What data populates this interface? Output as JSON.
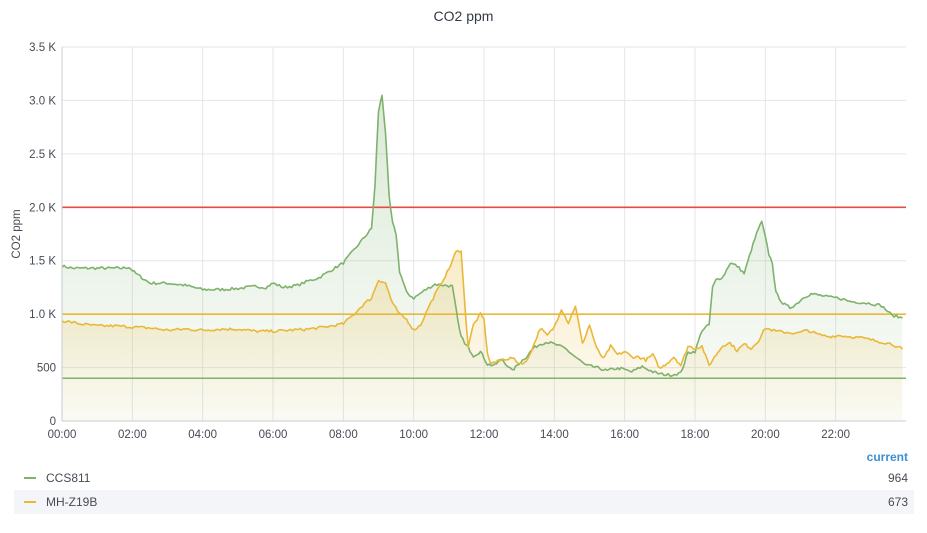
{
  "panel": {
    "title": "CO2 ppm",
    "legend_header": "current"
  },
  "legend": [
    {
      "name": "CCS811",
      "value": "964",
      "color": "#7eb26d"
    },
    {
      "name": "MH-Z19B",
      "value": "673",
      "color": "#eab839"
    }
  ],
  "chart_data": {
    "type": "area",
    "title": "CO2 ppm",
    "ylabel": "CO2 ppm",
    "xlabel": "",
    "x_unit": "hours",
    "xlim": [
      0,
      24
    ],
    "ylim": [
      0,
      3500
    ],
    "x_ticks": [
      0,
      2,
      4,
      6,
      8,
      10,
      12,
      14,
      16,
      18,
      20,
      22
    ],
    "x_tick_labels": [
      "00:00",
      "02:00",
      "04:00",
      "06:00",
      "08:00",
      "10:00",
      "12:00",
      "14:00",
      "16:00",
      "18:00",
      "20:00",
      "22:00"
    ],
    "y_ticks": [
      0,
      500,
      1000,
      1500,
      2000,
      2500,
      3000,
      3500
    ],
    "y_tick_labels": [
      "0",
      "500",
      "1.0 K",
      "1.5 K",
      "2.0 K",
      "2.5 K",
      "3.0 K",
      "3.5 K"
    ],
    "grid": true,
    "thresholds": [
      {
        "value": 2000,
        "color": "#e24d42"
      },
      {
        "value": 1000,
        "color": "#eab839"
      },
      {
        "value": 400,
        "color": "#7eb26d"
      }
    ],
    "series": [
      {
        "name": "CCS811",
        "color": "#7eb26d",
        "x": [
          0,
          0.3,
          1.0,
          1.7,
          1.9,
          2.1,
          2.5,
          3.0,
          3.5,
          4.0,
          4.5,
          5.0,
          5.5,
          5.8,
          6.0,
          6.3,
          6.7,
          7.0,
          7.3,
          7.6,
          8.0,
          8.3,
          8.6,
          8.8,
          8.9,
          9.0,
          9.1,
          9.2,
          9.3,
          9.4,
          9.5,
          9.6,
          9.8,
          10.0,
          10.3,
          10.6,
          10.9,
          11.1,
          11.3,
          11.45,
          11.55,
          11.7,
          11.9,
          12.1,
          12.3,
          12.5,
          12.8,
          13.0,
          13.2,
          13.4,
          13.6,
          13.8,
          14.0,
          14.3,
          14.6,
          14.9,
          15.1,
          15.3,
          15.5,
          15.7,
          15.9,
          16.2,
          16.5,
          16.8,
          17.0,
          17.3,
          17.6,
          17.8,
          18.0,
          18.2,
          18.4,
          18.5,
          18.6,
          18.8,
          19.0,
          19.2,
          19.4,
          19.6,
          19.8,
          19.9,
          20.0,
          20.1,
          20.2,
          20.3,
          20.5,
          20.7,
          20.9,
          21.1,
          21.3,
          21.5,
          21.8,
          22.1,
          22.4,
          22.7,
          23.0,
          23.3,
          23.6,
          23.9
        ],
        "y": [
          1450,
          1430,
          1430,
          1430,
          1440,
          1380,
          1290,
          1290,
          1270,
          1230,
          1230,
          1240,
          1260,
          1250,
          1290,
          1250,
          1270,
          1310,
          1340,
          1400,
          1480,
          1600,
          1720,
          1800,
          2200,
          2900,
          3050,
          2700,
          2100,
          1850,
          1750,
          1400,
          1200,
          1150,
          1220,
          1280,
          1270,
          1260,
          850,
          720,
          690,
          610,
          650,
          530,
          520,
          580,
          470,
          540,
          600,
          680,
          720,
          740,
          720,
          680,
          600,
          520,
          510,
          490,
          470,
          490,
          490,
          460,
          510,
          460,
          440,
          430,
          450,
          640,
          650,
          850,
          900,
          1250,
          1320,
          1350,
          1480,
          1450,
          1380,
          1600,
          1800,
          1860,
          1720,
          1560,
          1480,
          1200,
          1100,
          1060,
          1100,
          1160,
          1190,
          1180,
          1160,
          1150,
          1120,
          1110,
          1100,
          1080,
          990,
          964
        ]
      },
      {
        "name": "MH-Z19B",
        "color": "#eab839",
        "x": [
          0,
          0.5,
          1.0,
          1.5,
          2.0,
          2.5,
          3.0,
          3.5,
          4.0,
          4.5,
          5.0,
          5.5,
          6.0,
          6.5,
          7.0,
          7.5,
          8.0,
          8.3,
          8.6,
          8.8,
          9.0,
          9.2,
          9.4,
          9.5,
          9.6,
          9.8,
          10.0,
          10.2,
          10.4,
          10.6,
          10.8,
          11.0,
          11.2,
          11.35,
          11.45,
          11.55,
          11.7,
          11.9,
          12.0,
          12.1,
          12.2,
          12.4,
          12.6,
          12.8,
          13.0,
          13.2,
          13.4,
          13.6,
          13.8,
          14.0,
          14.2,
          14.4,
          14.6,
          14.8,
          15.0,
          15.2,
          15.4,
          15.6,
          15.8,
          16.0,
          16.2,
          16.4,
          16.6,
          16.8,
          17.0,
          17.2,
          17.4,
          17.6,
          17.8,
          18.0,
          18.2,
          18.4,
          18.6,
          18.8,
          19.0,
          19.2,
          19.4,
          19.6,
          19.8,
          20.0,
          20.3,
          20.6,
          20.9,
          21.2,
          21.5,
          21.8,
          22.1,
          22.4,
          22.7,
          23.0,
          23.3,
          23.6,
          23.9
        ],
        "y": [
          940,
          910,
          890,
          890,
          880,
          870,
          850,
          860,
          850,
          860,
          860,
          840,
          840,
          850,
          860,
          880,
          910,
          1000,
          1100,
          1150,
          1320,
          1290,
          1100,
          1050,
          1000,
          950,
          850,
          900,
          1050,
          1180,
          1300,
          1420,
          1580,
          1600,
          1100,
          700,
          900,
          1000,
          950,
          620,
          540,
          560,
          580,
          590,
          540,
          550,
          700,
          870,
          800,
          880,
          1050,
          920,
          1080,
          720,
          900,
          680,
          580,
          700,
          620,
          650,
          600,
          600,
          570,
          620,
          490,
          540,
          600,
          520,
          700,
          680,
          700,
          520,
          620,
          710,
          730,
          660,
          720,
          680,
          750,
          870,
          840,
          830,
          820,
          850,
          810,
          790,
          800,
          790,
          780,
          760,
          740,
          720,
          673
        ]
      }
    ]
  }
}
